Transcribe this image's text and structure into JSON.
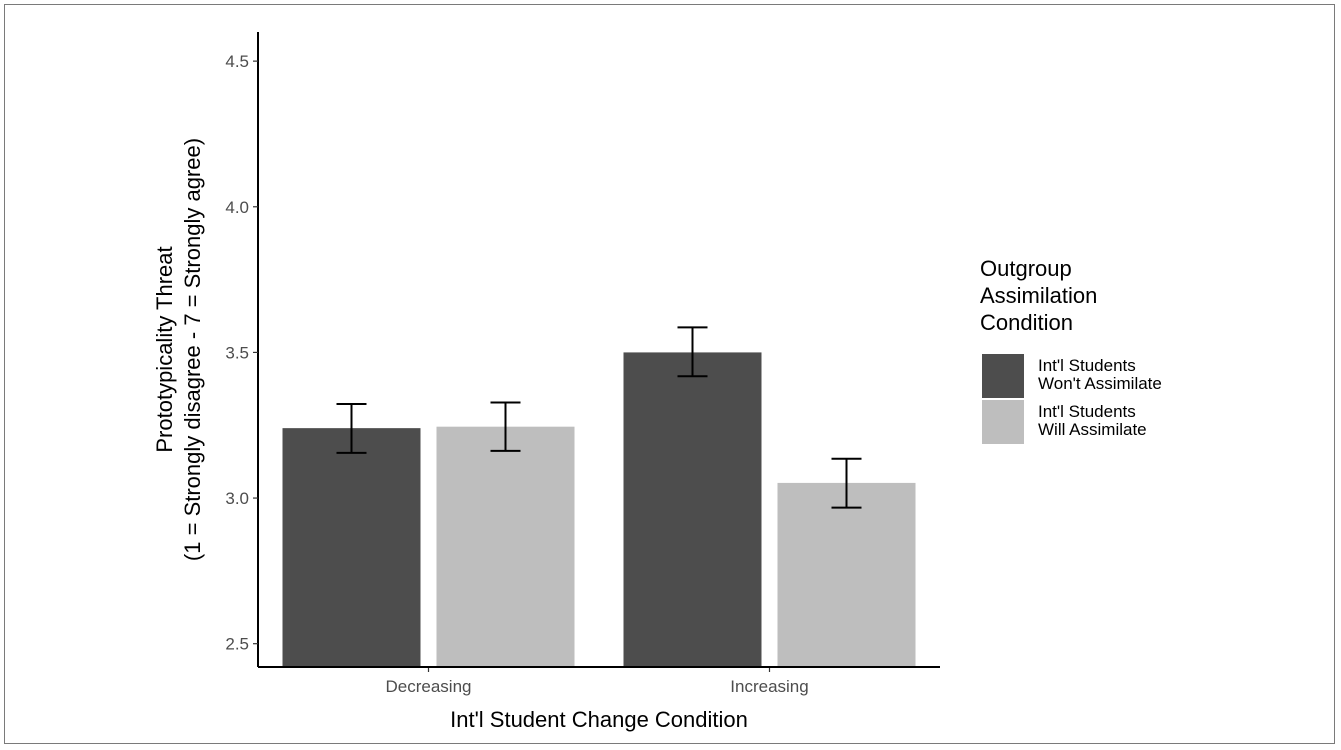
{
  "chart_data": {
    "type": "bar",
    "title": "",
    "xlabel": "Int'l Student Change Condition",
    "ylabel_lines": [
      "Prototypicality Threat",
      "(1 = Strongly disagree - 7 = Strongly agree)"
    ],
    "categories": [
      "Decreasing",
      "Increasing"
    ],
    "ylim": [
      2.42,
      4.6
    ],
    "yticks": [
      2.5,
      3.0,
      3.5,
      4.0,
      4.5
    ],
    "ytick_labels": [
      "2.5",
      "3.0",
      "3.5",
      "4.0",
      "4.5"
    ],
    "grid": false,
    "legend": {
      "title_lines": [
        "Outgroup",
        "Assimilation",
        "Condition"
      ],
      "placement": "right"
    },
    "series": [
      {
        "name_lines": [
          "Int'l Students",
          "Won't Assimilate"
        ],
        "color": "#4d4d4d",
        "values": [
          3.24,
          3.5
        ],
        "error_low": [
          3.155,
          3.418
        ],
        "error_high": [
          3.323,
          3.586
        ]
      },
      {
        "name_lines": [
          "Int'l Students",
          "Will Assimilate"
        ],
        "color": "#bebebe",
        "values": [
          3.245,
          3.052
        ],
        "error_low": [
          3.162,
          2.967
        ],
        "error_high": [
          3.328,
          3.135
        ]
      }
    ]
  }
}
